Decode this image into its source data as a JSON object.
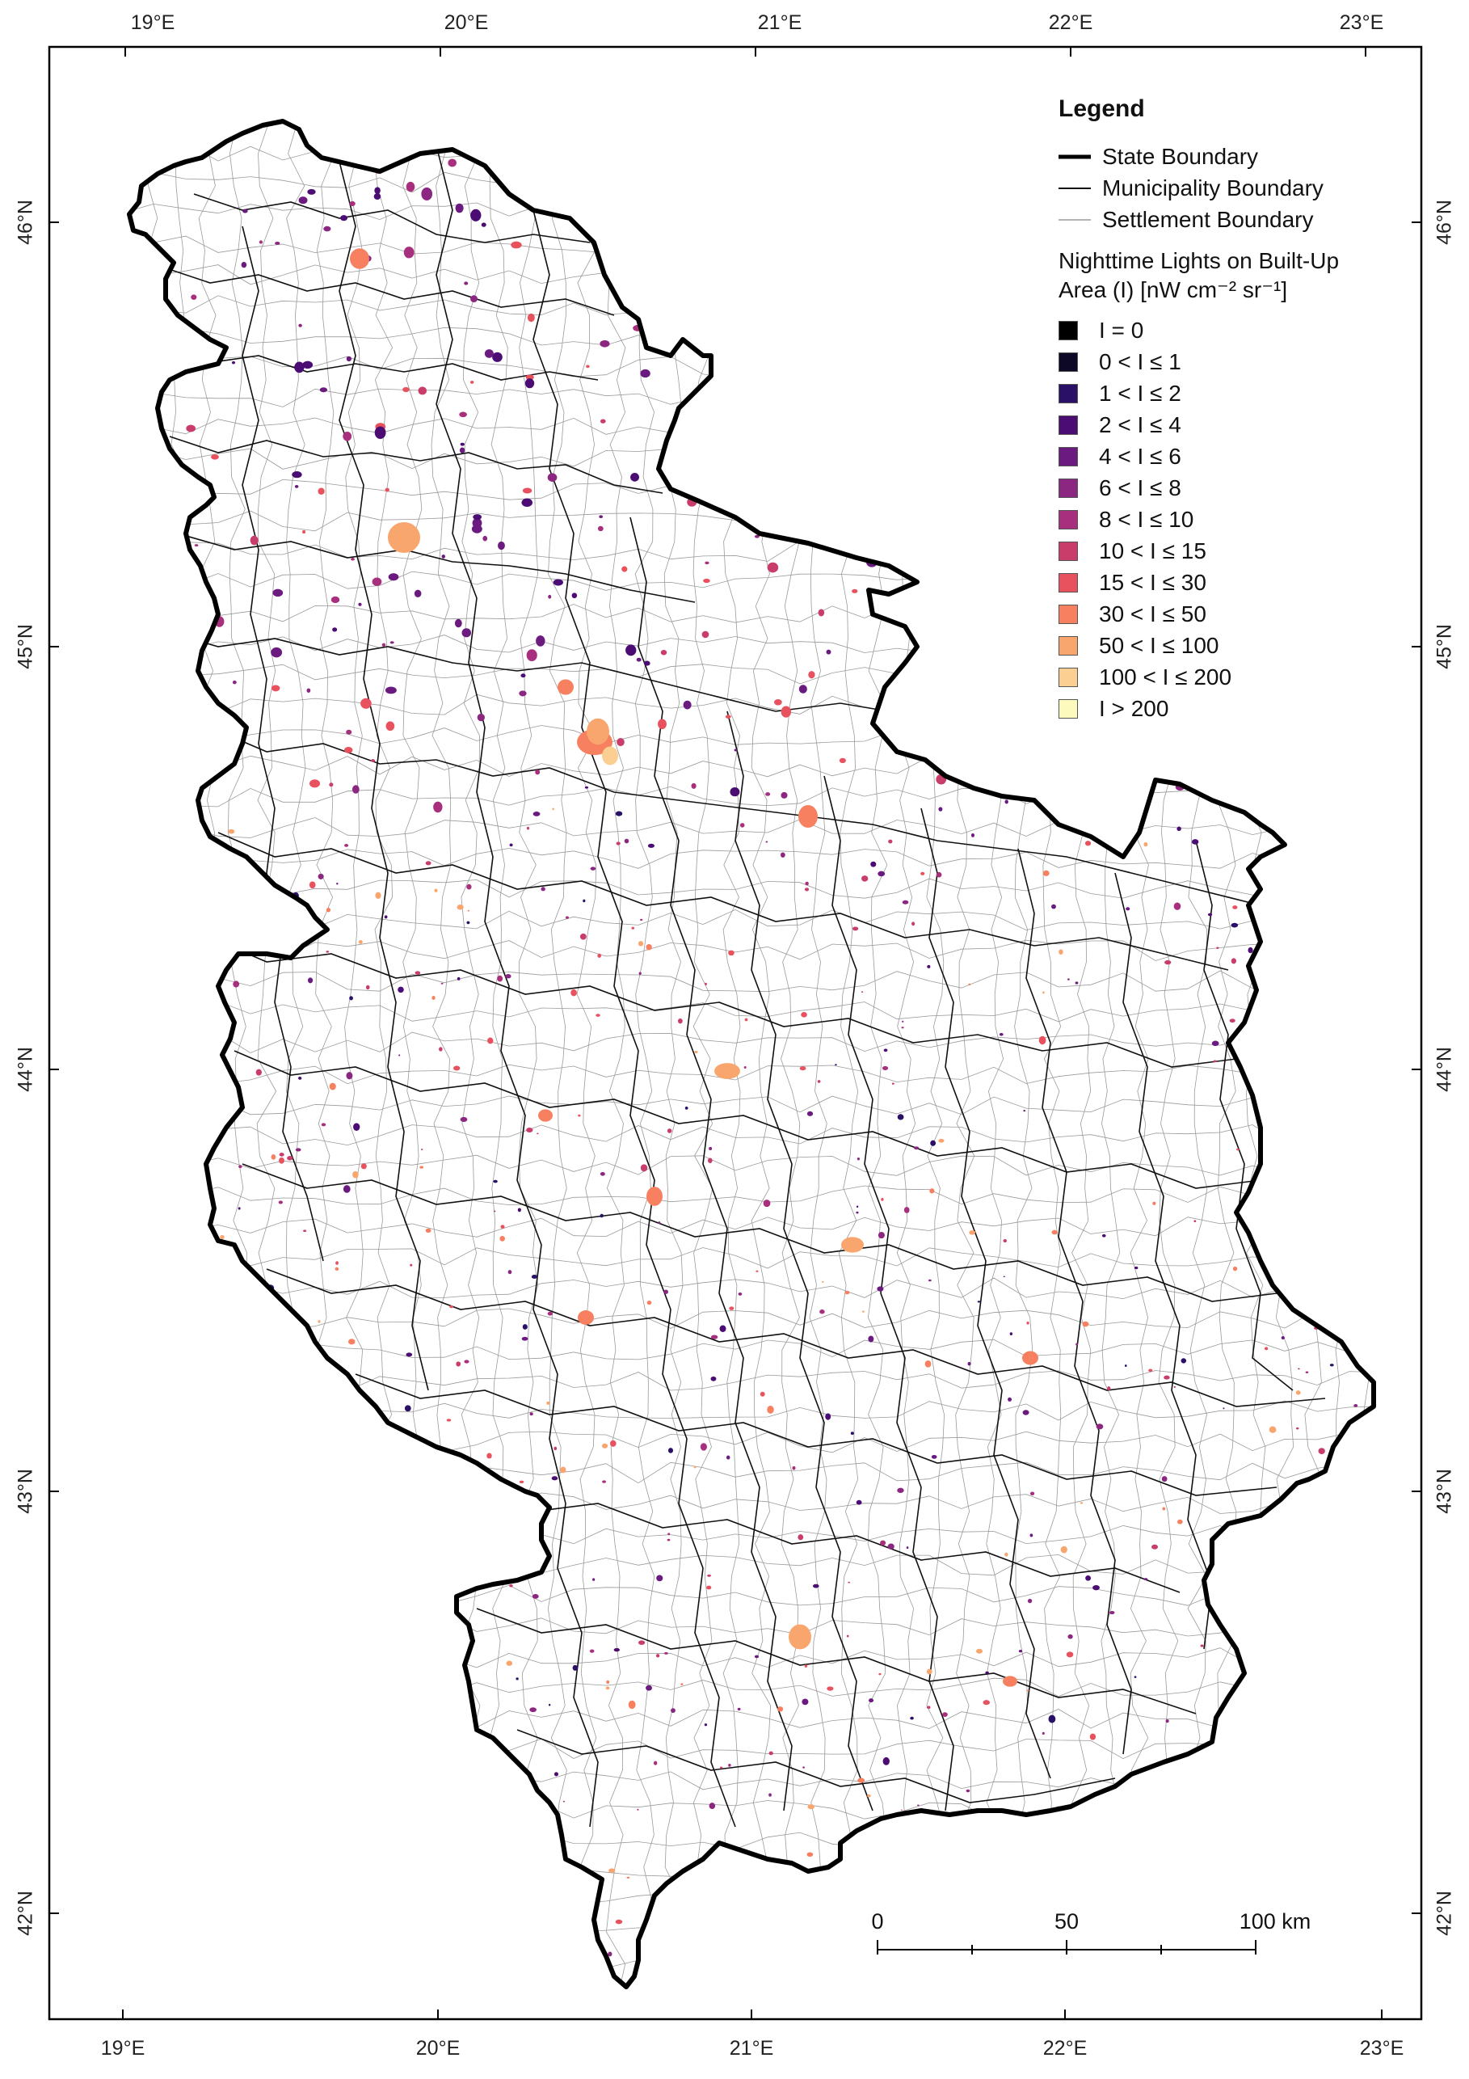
{
  "map": {
    "axes": {
      "top": [
        "19°E",
        "20°E",
        "21°E",
        "22°E",
        "23°E"
      ],
      "bottom": [
        "19°E",
        "20°E",
        "21°E",
        "22°E",
        "23°E"
      ],
      "left": [
        "46°N",
        "45°N",
        "44°N",
        "43°N",
        "42°N"
      ],
      "right": [
        "46°N",
        "45°N",
        "44°N",
        "43°N",
        "42°N"
      ]
    },
    "colors": {
      "state_boundary": "#000000",
      "municipality_boundary": "#111111",
      "settlement_boundary": "#9a9a9a"
    }
  },
  "legend": {
    "title": "Legend",
    "lines": [
      {
        "label": "State Boundary",
        "color": "#000000"
      },
      {
        "label": "Municipality Boundary",
        "color": "#111111"
      },
      {
        "label": "Settlement Boundary",
        "color": "#9a9a9a"
      }
    ],
    "nl_title_line1": "Nighttime Lights on Built-Up",
    "nl_title_line2": "Area (I) [nW cm⁻² sr⁻¹]",
    "classes": [
      {
        "label": "I = 0",
        "color": "#000000"
      },
      {
        "label": "0 < I ≤ 1",
        "color": "#0c0826"
      },
      {
        "label": "1 < I ≤ 2",
        "color": "#2a1066"
      },
      {
        "label": "2 < I ≤ 4",
        "color": "#4b0c73"
      },
      {
        "label": "4 < I ≤ 6",
        "color": "#6b1b80"
      },
      {
        "label": "6 < I ≤ 8",
        "color": "#8b2681"
      },
      {
        "label": "8 < I ≤ 10",
        "color": "#a82f7d"
      },
      {
        "label": "10 < I ≤ 15",
        "color": "#c93d6b"
      },
      {
        "label": "15 < I ≤ 30",
        "color": "#e8525e"
      },
      {
        "label": "30 < I ≤ 50",
        "color": "#f6805f"
      },
      {
        "label": "50 < I ≤ 100",
        "color": "#f9a66e"
      },
      {
        "label": "100 < I ≤ 200",
        "color": "#fbcf92"
      },
      {
        "label": "I > 200",
        "color": "#fcfbbd"
      }
    ]
  },
  "scalebar": {
    "labels": [
      "0",
      "50",
      "100 km"
    ]
  }
}
